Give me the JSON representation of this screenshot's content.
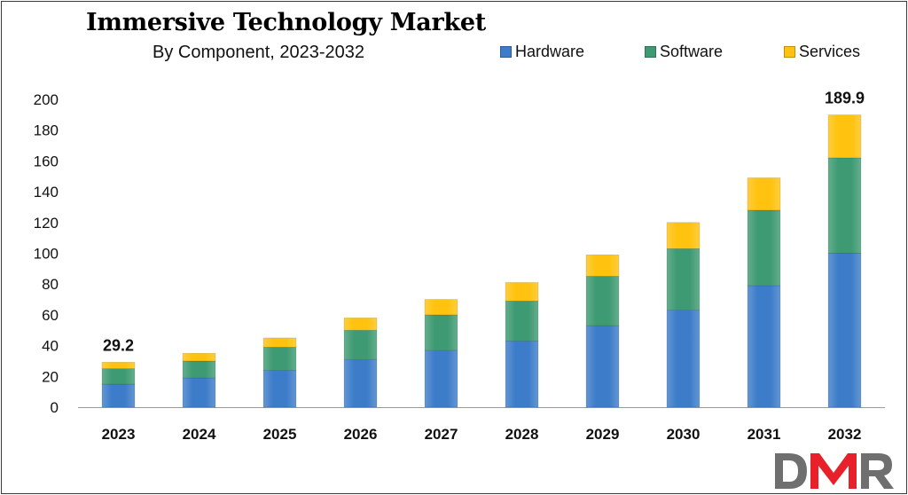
{
  "title": "Immersive Technology Market",
  "subtitle": "By Component, 2023-2032",
  "logo_text": "DMR",
  "colors": {
    "hardware": "#3D7CC9",
    "software": "#3E9A72",
    "services": "#FFC20E",
    "logo_grey": "#6F6F6F",
    "logo_red": "#E8202A"
  },
  "chart_data": {
    "type": "bar",
    "stacked": true,
    "categories": [
      "2023",
      "2024",
      "2025",
      "2026",
      "2027",
      "2028",
      "2029",
      "2030",
      "2031",
      "2032"
    ],
    "series": [
      {
        "name": "Hardware",
        "values": [
          15,
          19,
          24,
          31,
          37,
          43,
          53,
          63,
          79,
          100
        ]
      },
      {
        "name": "Software",
        "values": [
          10,
          11,
          15,
          19,
          23,
          26,
          32,
          40,
          49,
          62
        ]
      },
      {
        "name": "Services",
        "values": [
          4.2,
          5,
          6,
          8,
          10,
          12,
          14,
          17,
          21,
          27.9
        ]
      }
    ],
    "annotations": [
      {
        "category": "2023",
        "label": "29.2"
      },
      {
        "category": "2032",
        "label": "189.9"
      }
    ],
    "ylim": [
      0,
      200
    ],
    "yticks": [
      0,
      20,
      40,
      60,
      80,
      100,
      120,
      140,
      160,
      180,
      200
    ],
    "xlabel": "",
    "ylabel": "",
    "legend": "top-right",
    "grid": false
  }
}
